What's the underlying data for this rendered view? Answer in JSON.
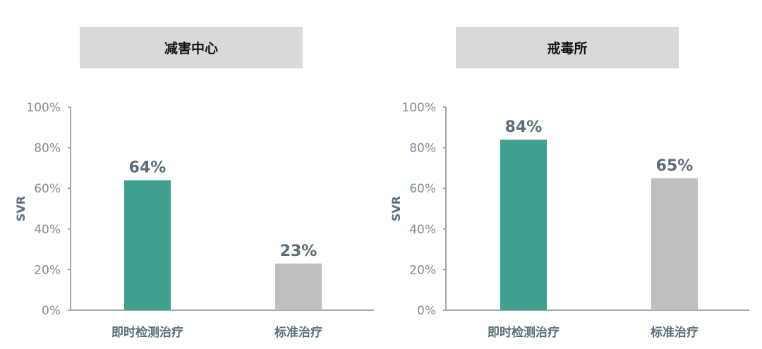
{
  "chart_data": [
    {
      "type": "bar",
      "title": "减害中心",
      "ylabel": "SVR",
      "categories": [
        "即时检测治疗",
        "标准治疗"
      ],
      "values": [
        64,
        23
      ],
      "data_labels": [
        "64%",
        "23%"
      ],
      "ylim": [
        0,
        100
      ],
      "yticks": [
        "0%",
        "20%",
        "40%",
        "60%",
        "80%",
        "100%"
      ],
      "colors": [
        "#3fa08f",
        "#bfbfbf"
      ],
      "grid": false
    },
    {
      "type": "bar",
      "title": "戒毒所",
      "ylabel": "SVR",
      "categories": [
        "即时检测治疗",
        "标准治疗"
      ],
      "values": [
        84,
        65
      ],
      "data_labels": [
        "84%",
        "65%"
      ],
      "ylim": [
        0,
        100
      ],
      "yticks": [
        "0%",
        "20%",
        "40%",
        "60%",
        "80%",
        "100%"
      ],
      "colors": [
        "#3fa08f",
        "#bfbfbf"
      ],
      "grid": false
    }
  ]
}
